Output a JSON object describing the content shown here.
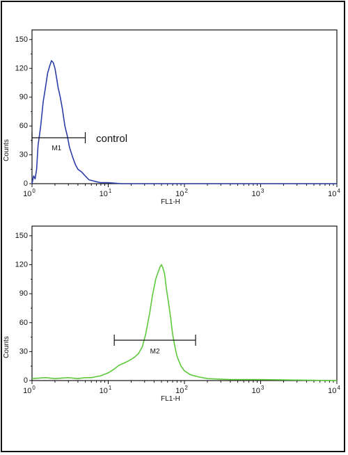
{
  "chart_data": [
    {
      "type": "area",
      "series": [
        {
          "color": "#2b3ea8",
          "x": [
            1,
            1.05,
            1.1,
            1.15,
            1.2,
            1.3,
            1.4,
            1.5,
            1.6,
            1.7,
            1.8,
            1.9,
            2.0,
            2.1,
            2.2,
            2.35,
            2.5,
            2.7,
            2.9,
            3.1,
            3.4,
            3.7,
            4.0,
            4.5,
            5.0,
            5.6,
            6.3,
            7.0,
            8.0,
            9.0,
            10,
            15,
            30,
            100,
            1000,
            10000
          ],
          "y": [
            0,
            8,
            5,
            15,
            40,
            60,
            85,
            100,
            115,
            122,
            128,
            126,
            120,
            110,
            100,
            90,
            78,
            60,
            50,
            38,
            28,
            20,
            15,
            12,
            8,
            4,
            3,
            2,
            1,
            1,
            1,
            0,
            0,
            0,
            0,
            0
          ]
        }
      ],
      "markers": [
        {
          "label": "M1",
          "from": 1,
          "to": 5
        }
      ],
      "annotation": "control",
      "xlabel": "FL1-H",
      "ylabel": "Counts",
      "xscale": "log",
      "xlim": [
        1,
        10000
      ],
      "ylim": [
        0,
        160
      ],
      "yticks": [
        0,
        30,
        60,
        90,
        120,
        150
      ],
      "xticks": [
        {
          "base": "10",
          "exp": "0"
        },
        {
          "base": "10",
          "exp": "1"
        },
        {
          "base": "10",
          "exp": "2"
        },
        {
          "base": "10",
          "exp": "3"
        },
        {
          "base": "10",
          "exp": "4"
        }
      ]
    },
    {
      "type": "area",
      "series": [
        {
          "color": "#5cc93a",
          "x": [
            1,
            1.5,
            2,
            3,
            4,
            5,
            6,
            8,
            10,
            12,
            14,
            16,
            18,
            20,
            22,
            25,
            28,
            31,
            35,
            38,
            42,
            45,
            48,
            50,
            52,
            55,
            58,
            62,
            66,
            70,
            75,
            80,
            90,
            100,
            120,
            150,
            200,
            400,
            1000,
            10000
          ],
          "y": [
            2,
            3,
            2,
            3,
            2,
            3,
            3,
            5,
            8,
            12,
            16,
            18,
            20,
            22,
            24,
            28,
            35,
            48,
            70,
            88,
            105,
            112,
            118,
            120,
            117,
            110,
            95,
            80,
            65,
            48,
            35,
            25,
            15,
            10,
            6,
            4,
            2,
            1,
            1,
            0
          ]
        }
      ],
      "markers": [
        {
          "label": "M2",
          "from": 12,
          "to": 140
        }
      ],
      "xlabel": "FL1-H",
      "ylabel": "Counts",
      "xscale": "log",
      "xlim": [
        1,
        10000
      ],
      "ylim": [
        0,
        160
      ],
      "yticks": [
        0,
        30,
        60,
        90,
        120,
        150
      ],
      "xticks": [
        {
          "base": "10",
          "exp": "0"
        },
        {
          "base": "10",
          "exp": "1"
        },
        {
          "base": "10",
          "exp": "2"
        },
        {
          "base": "10",
          "exp": "3"
        },
        {
          "base": "10",
          "exp": "4"
        }
      ]
    }
  ]
}
